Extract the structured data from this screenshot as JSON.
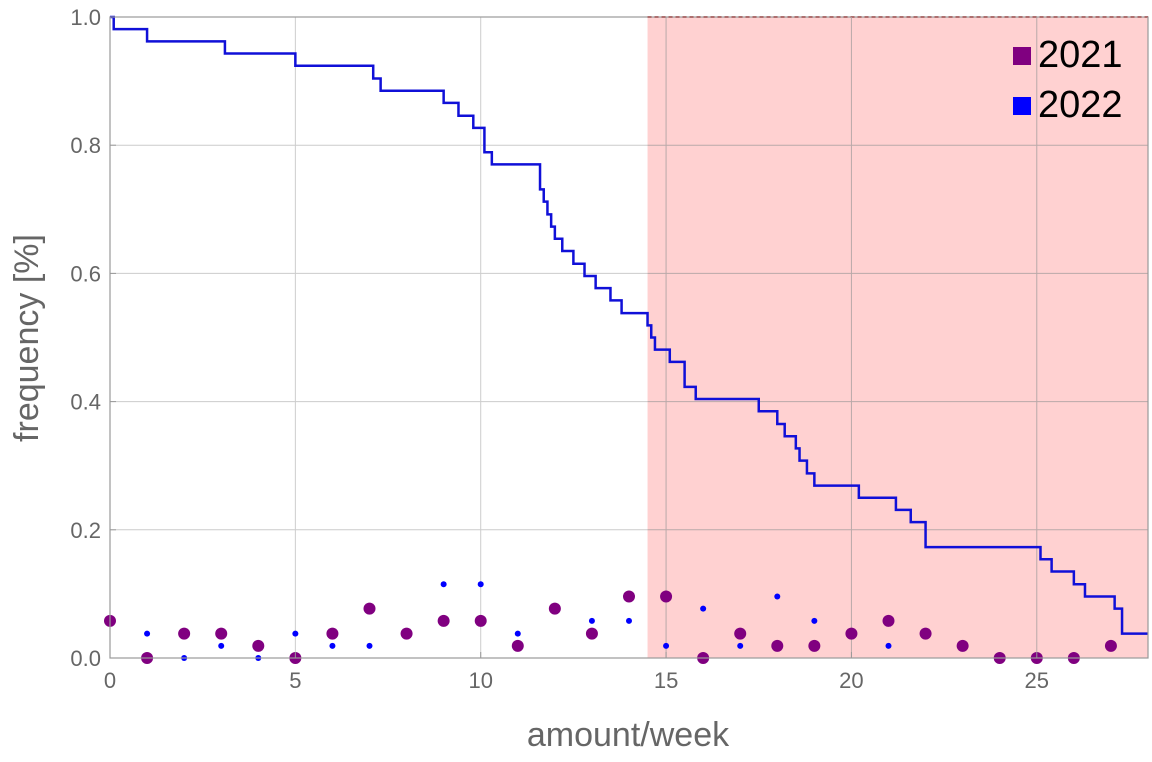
{
  "chart_data": {
    "type": "scatter",
    "xlabel": "amount/week",
    "ylabel": "frequency [%]",
    "xlim": [
      0,
      28
    ],
    "ylim": [
      0,
      1
    ],
    "x_ticks": [
      0,
      5,
      10,
      15,
      20,
      25
    ],
    "x_tick_labels": [
      "0",
      "5",
      "10",
      "15",
      "20",
      "25"
    ],
    "y_ticks": [
      0,
      0.2,
      0.4,
      0.6,
      0.8,
      1.0
    ],
    "y_tick_labels": [
      "0.0",
      "0.2",
      "0.4",
      "0.6",
      "0.8",
      "1.0"
    ],
    "grid": true,
    "legend_position": "top-right",
    "highlight_region": {
      "x_from": 14.5,
      "x_to": 28,
      "color": "#ffcfcf",
      "top_line_color": "#d03030"
    },
    "series": [
      {
        "name": "2021",
        "kind": "points",
        "color": "#800080",
        "x": [
          0,
          1,
          2,
          3,
          4,
          5,
          6,
          7,
          8,
          9,
          10,
          11,
          12,
          13,
          14,
          15,
          16,
          17,
          18,
          19,
          20,
          21,
          22,
          23,
          24,
          25,
          26,
          27
        ],
        "y": [
          0.058,
          0,
          0.038,
          0.038,
          0.019,
          0,
          0.038,
          0.077,
          0.038,
          0.058,
          0.058,
          0.019,
          0.077,
          0.038,
          0.096,
          0.096,
          0,
          0.038,
          0.019,
          0.019,
          0.038,
          0.058,
          0.038,
          0.019,
          0,
          0,
          0,
          0.019
        ]
      },
      {
        "name": "2022",
        "kind": "points",
        "color": "#0000ff",
        "x": [
          1,
          2,
          3,
          4,
          5,
          6,
          7,
          9,
          10,
          11,
          13,
          14,
          15,
          16,
          17,
          18,
          19,
          21
        ],
        "y": [
          0.038,
          0,
          0.019,
          0,
          0.038,
          0.019,
          0.019,
          0.115,
          0.115,
          0.038,
          0.058,
          0.058,
          0.019,
          0.077,
          0.019,
          0.096,
          0.058,
          0.019
        ]
      },
      {
        "kind": "step",
        "color": "#1010d8",
        "x": [
          0,
          0.1,
          1.0,
          3.1,
          5.0,
          7.1,
          7.3,
          9.0,
          9.4,
          9.8,
          10.1,
          10.3,
          11.6,
          11.7,
          11.8,
          11.9,
          12.0,
          12.2,
          12.5,
          12.8,
          13.1,
          13.5,
          13.8,
          14.0,
          14.5,
          14.6,
          14.7,
          15.1,
          15.5,
          15.8,
          17.5,
          18.0,
          18.2,
          18.5,
          18.6,
          18.8,
          19.0,
          20.2,
          21.2,
          21.6,
          22.0,
          25.1,
          25.4,
          26.0,
          26.3,
          27.1,
          27.3,
          28.0
        ],
        "y": [
          1.0,
          0.981,
          0.962,
          0.943,
          0.924,
          0.904,
          0.885,
          0.866,
          0.846,
          0.827,
          0.789,
          0.77,
          0.731,
          0.712,
          0.692,
          0.673,
          0.654,
          0.635,
          0.615,
          0.596,
          0.577,
          0.558,
          0.538,
          0.538,
          0.519,
          0.5,
          0.481,
          0.462,
          0.423,
          0.404,
          0.385,
          0.365,
          0.346,
          0.327,
          0.308,
          0.288,
          0.269,
          0.25,
          0.231,
          0.212,
          0.173,
          0.154,
          0.135,
          0.115,
          0.096,
          0.077,
          0.038,
          0.038
        ]
      }
    ]
  }
}
